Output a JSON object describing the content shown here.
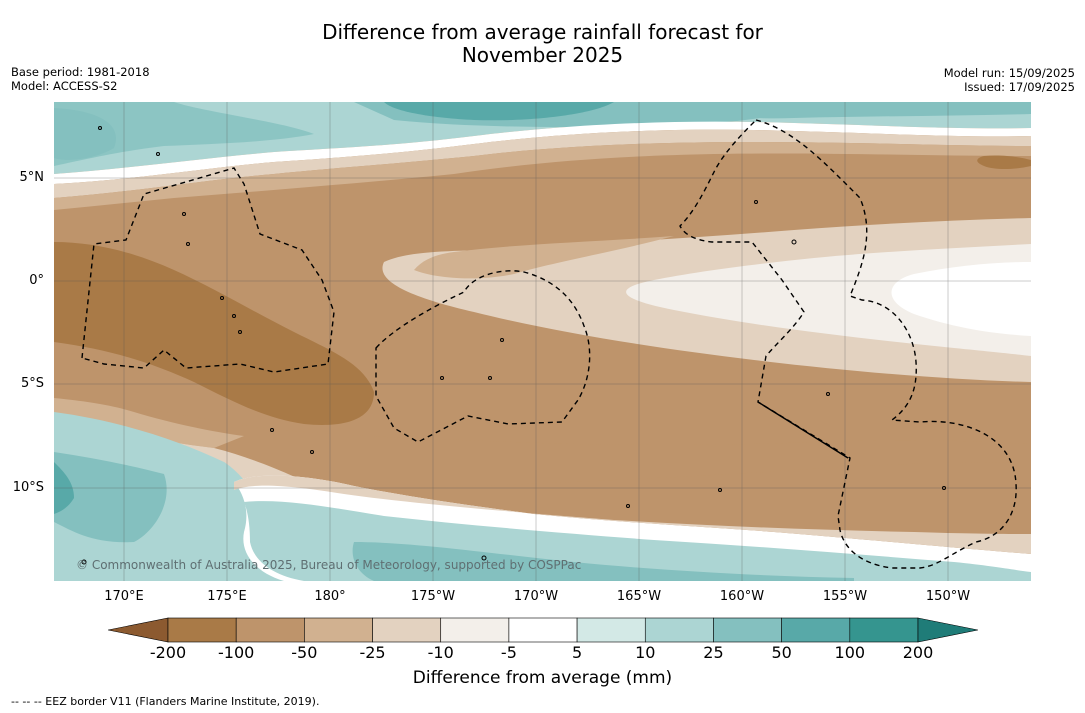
{
  "title_line1": "Difference from average rainfall forecast for",
  "title_line2": "November 2025",
  "meta_left": [
    "Base period: 1981-2018",
    "Model: ACCESS-S2"
  ],
  "meta_right": [
    "Model run: 15/09/2025",
    "Issued: 17/09/2025"
  ],
  "latitude_labels": [
    "5°N",
    "0°",
    "5°S",
    "10°S"
  ],
  "longitude_labels": [
    "170°E",
    "175°E",
    "180°",
    "175°W",
    "170°W",
    "165°W",
    "160°W",
    "155°W",
    "150°W"
  ],
  "watermark": "© Commonwealth of Australia 2025, Bureau of Meteorology, supported by COSPPac",
  "colorbar": {
    "ticks": [
      "-200",
      "-100",
      "-50",
      "-25",
      "-10",
      "-5",
      "5",
      "10",
      "25",
      "50",
      "100",
      "200"
    ],
    "colors": [
      "#8c5a30",
      "#a97a47",
      "#be946b",
      "#d1b190",
      "#e3d2c0",
      "#f3efea",
      "#ffffff",
      "#d3e9e6",
      "#acd5d3",
      "#84c0bf",
      "#58a9a8",
      "#35958f",
      "#1f7c78"
    ],
    "label": "Difference from average (mm)"
  },
  "footer": "--  --  -- EEZ border V11 (Flanders Marine Institute, 2019)."
}
